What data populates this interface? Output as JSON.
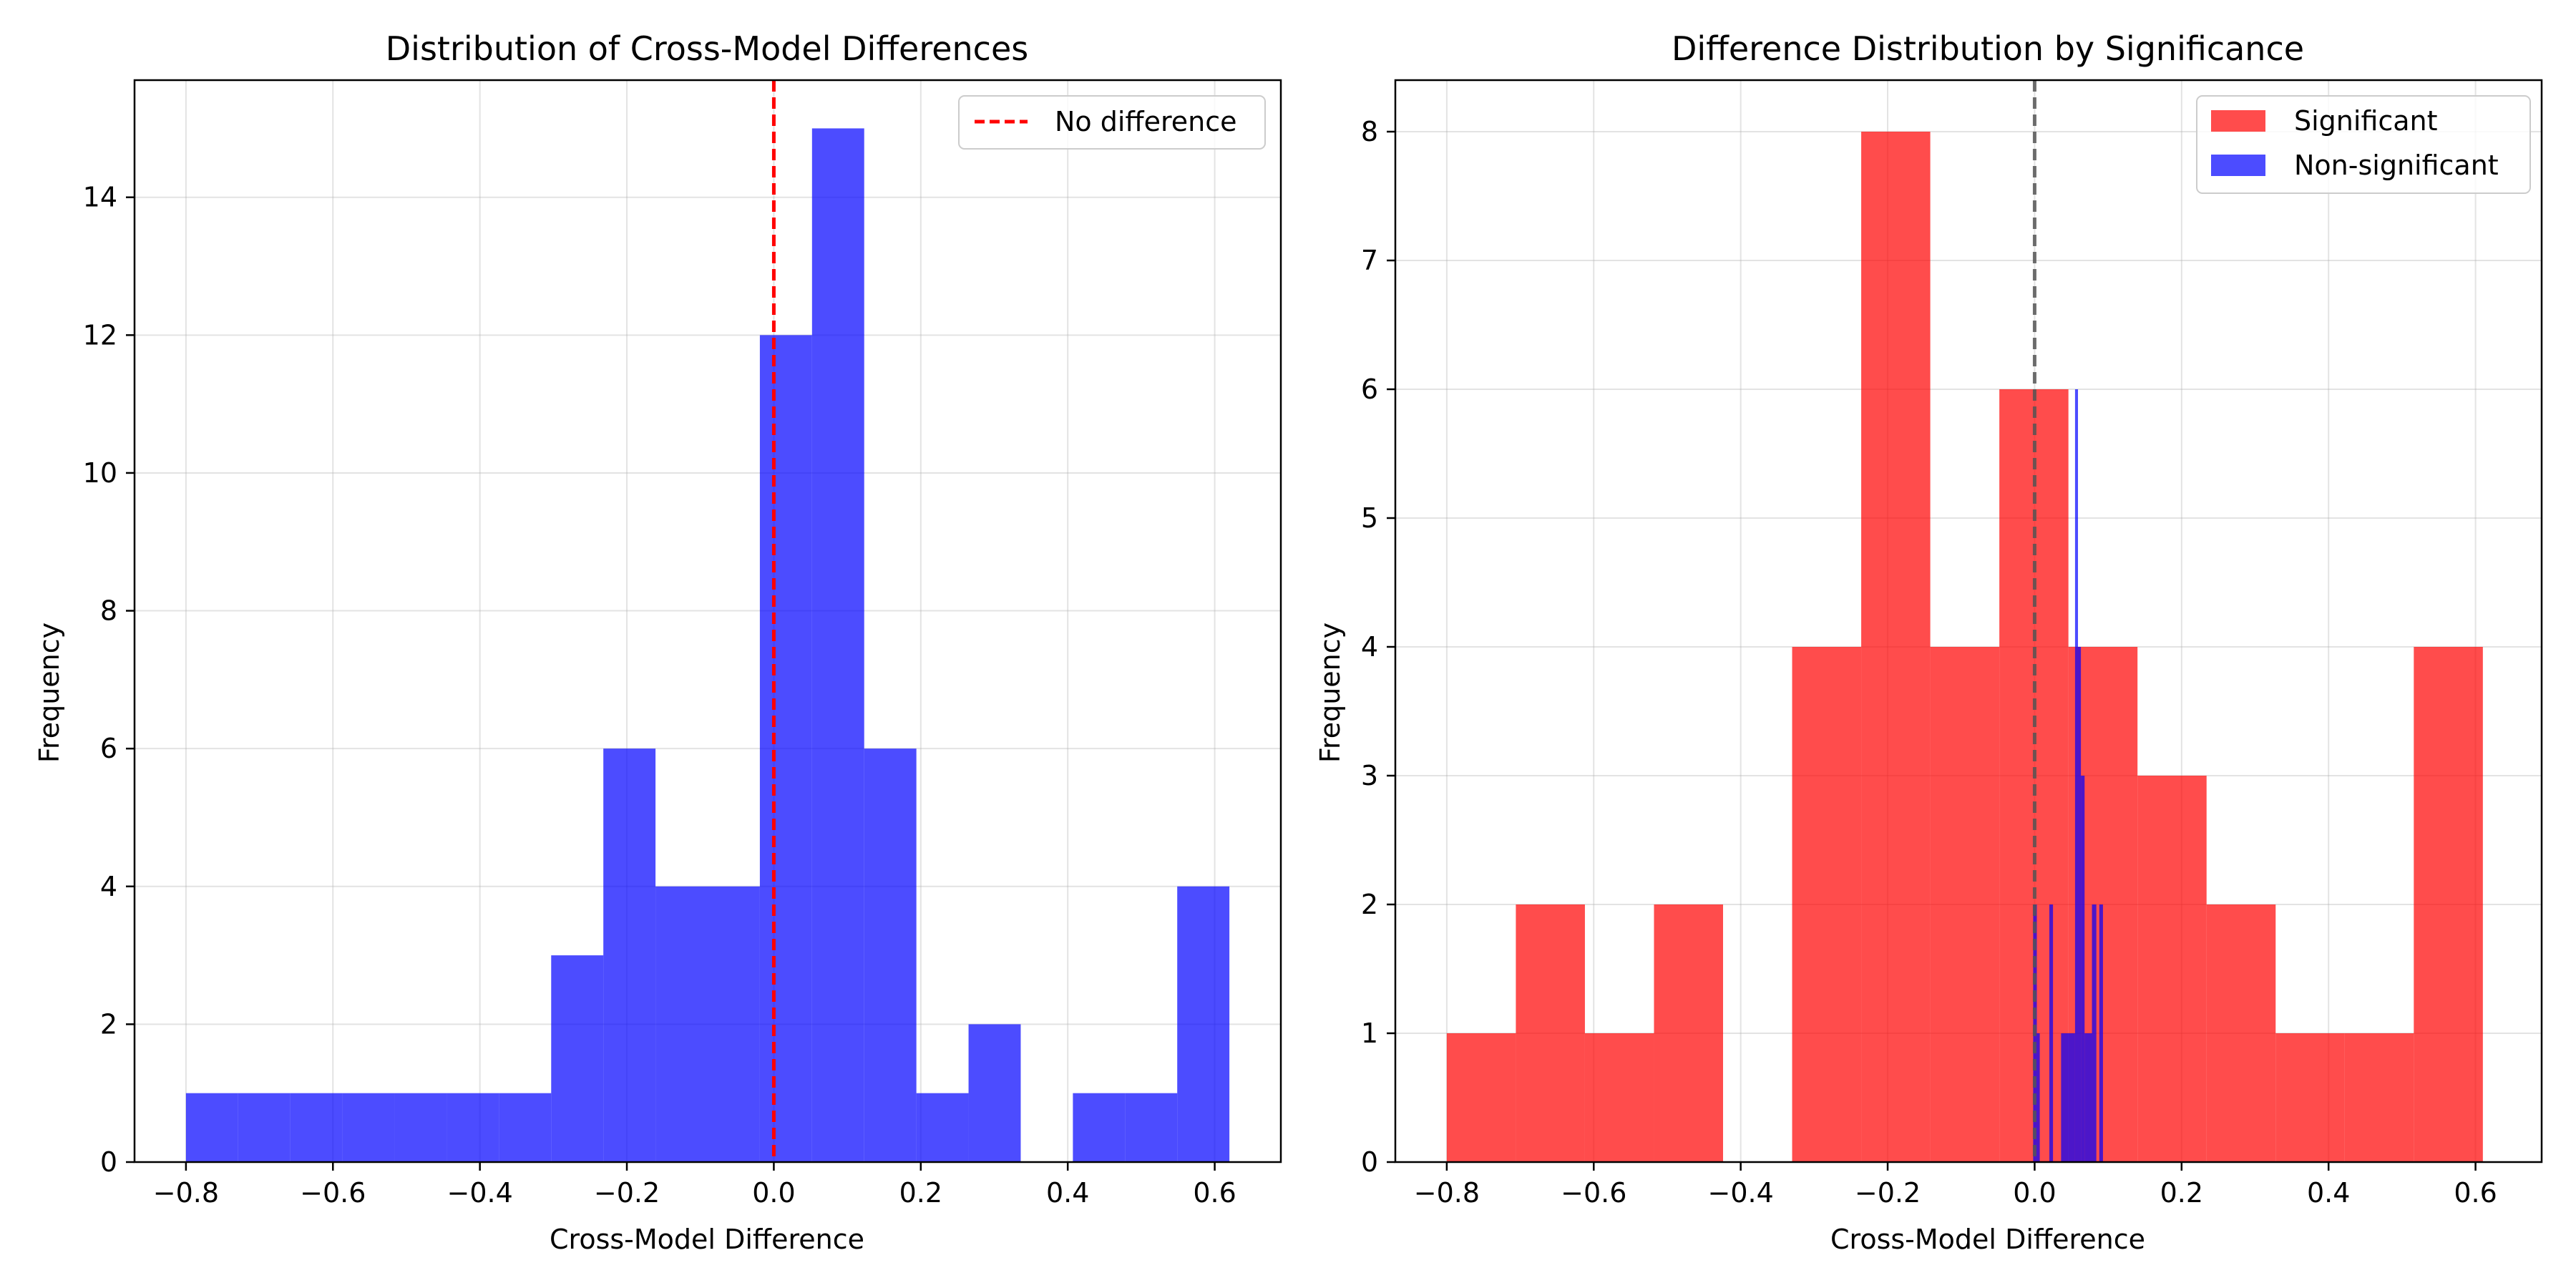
{
  "chart_data": [
    {
      "type": "bar",
      "title": "Distribution of Cross-Model Differences",
      "xlabel": "Cross-Model Difference",
      "ylabel": "Frequency",
      "xlim": [
        -0.87,
        0.69
      ],
      "ylim": [
        0,
        15.7
      ],
      "xticks": [
        "−0.8",
        "−0.6",
        "−0.4",
        "−0.2",
        "0.0",
        "0.2",
        "0.4",
        "0.6"
      ],
      "xtick_values": [
        -0.8,
        -0.6,
        -0.4,
        -0.2,
        0.0,
        0.2,
        0.4,
        0.6
      ],
      "yticks": [
        "0",
        "2",
        "4",
        "6",
        "8",
        "10",
        "12",
        "14"
      ],
      "ytick_values": [
        0,
        2,
        4,
        6,
        8,
        10,
        12,
        14
      ],
      "grid": true,
      "legend_position": "top-right",
      "reference_line": {
        "x": 0.0,
        "label": "No difference",
        "color": "#ff0000",
        "style": "dashed"
      },
      "series": [
        {
          "color": "#0000ff",
          "bins": [
            {
              "x0": -0.8,
              "x1": -0.729,
              "count": 1
            },
            {
              "x0": -0.729,
              "x1": -0.658,
              "count": 1
            },
            {
              "x0": -0.658,
              "x1": -0.587,
              "count": 1
            },
            {
              "x0": -0.587,
              "x1": -0.516,
              "count": 1
            },
            {
              "x0": -0.516,
              "x1": -0.445,
              "count": 1
            },
            {
              "x0": -0.445,
              "x1": -0.374,
              "count": 1
            },
            {
              "x0": -0.374,
              "x1": -0.303,
              "count": 1
            },
            {
              "x0": -0.303,
              "x1": -0.232,
              "count": 3
            },
            {
              "x0": -0.232,
              "x1": -0.161,
              "count": 6
            },
            {
              "x0": -0.161,
              "x1": -0.09,
              "count": 4
            },
            {
              "x0": -0.09,
              "x1": -0.019,
              "count": 4
            },
            {
              "x0": -0.019,
              "x1": 0.052,
              "count": 12
            },
            {
              "x0": 0.052,
              "x1": 0.123,
              "count": 15
            },
            {
              "x0": 0.123,
              "x1": 0.194,
              "count": 6
            },
            {
              "x0": 0.194,
              "x1": 0.265,
              "count": 1
            },
            {
              "x0": 0.265,
              "x1": 0.336,
              "count": 2
            },
            {
              "x0": 0.336,
              "x1": 0.407,
              "count": 0
            },
            {
              "x0": 0.407,
              "x1": 0.478,
              "count": 1
            },
            {
              "x0": 0.478,
              "x1": 0.549,
              "count": 1
            },
            {
              "x0": 0.549,
              "x1": 0.62,
              "count": 4
            }
          ]
        }
      ]
    },
    {
      "type": "bar",
      "title": "Difference Distribution by Significance",
      "xlabel": "Cross-Model Difference",
      "ylabel": "Frequency",
      "xlim": [
        -0.87,
        0.69
      ],
      "ylim": [
        0,
        8.4
      ],
      "xticks": [
        "−0.8",
        "−0.6",
        "−0.4",
        "−0.2",
        "0.0",
        "0.2",
        "0.4",
        "0.6"
      ],
      "xtick_values": [
        -0.8,
        -0.6,
        -0.4,
        -0.2,
        0.0,
        0.2,
        0.4,
        0.6
      ],
      "yticks": [
        "0",
        "1",
        "2",
        "3",
        "4",
        "5",
        "6",
        "7",
        "8"
      ],
      "ytick_values": [
        0,
        1,
        2,
        3,
        4,
        5,
        6,
        7,
        8
      ],
      "grid": true,
      "legend_position": "top-right",
      "reference_line": {
        "x": 0.0,
        "color": "#555555",
        "style": "dashed"
      },
      "series": [
        {
          "name": "Significant",
          "color": "#ff0000",
          "bins": [
            {
              "x0": -0.8,
              "x1": -0.706,
              "count": 1
            },
            {
              "x0": -0.706,
              "x1": -0.612,
              "count": 2
            },
            {
              "x0": -0.612,
              "x1": -0.518,
              "count": 1
            },
            {
              "x0": -0.518,
              "x1": -0.424,
              "count": 2
            },
            {
              "x0": -0.424,
              "x1": -0.33,
              "count": 0
            },
            {
              "x0": -0.33,
              "x1": -0.236,
              "count": 4
            },
            {
              "x0": -0.236,
              "x1": -0.142,
              "count": 8
            },
            {
              "x0": -0.142,
              "x1": -0.048,
              "count": 4
            },
            {
              "x0": -0.048,
              "x1": 0.046,
              "count": 6
            },
            {
              "x0": 0.046,
              "x1": 0.14,
              "count": 4
            },
            {
              "x0": 0.14,
              "x1": 0.234,
              "count": 3
            },
            {
              "x0": 0.234,
              "x1": 0.328,
              "count": 2
            },
            {
              "x0": 0.328,
              "x1": 0.422,
              "count": 1
            },
            {
              "x0": 0.422,
              "x1": 0.516,
              "count": 1
            },
            {
              "x0": 0.516,
              "x1": 0.61,
              "count": 4
            }
          ]
        },
        {
          "name": "Non-significant",
          "color": "#0000ff",
          "bins": [
            {
              "x0": -0.002,
              "x1": 0.003,
              "count": 2
            },
            {
              "x0": 0.003,
              "x1": 0.007,
              "count": 1
            },
            {
              "x0": 0.007,
              "x1": 0.02,
              "count": 0
            },
            {
              "x0": 0.02,
              "x1": 0.025,
              "count": 2
            },
            {
              "x0": 0.025,
              "x1": 0.036,
              "count": 0
            },
            {
              "x0": 0.036,
              "x1": 0.055,
              "count": 1
            },
            {
              "x0": 0.055,
              "x1": 0.059,
              "count": 6
            },
            {
              "x0": 0.059,
              "x1": 0.063,
              "count": 4
            },
            {
              "x0": 0.063,
              "x1": 0.068,
              "count": 3
            },
            {
              "x0": 0.068,
              "x1": 0.078,
              "count": 1
            },
            {
              "x0": 0.078,
              "x1": 0.084,
              "count": 2
            },
            {
              "x0": 0.084,
              "x1": 0.088,
              "count": 0
            },
            {
              "x0": 0.088,
              "x1": 0.093,
              "count": 2
            }
          ]
        }
      ]
    }
  ]
}
